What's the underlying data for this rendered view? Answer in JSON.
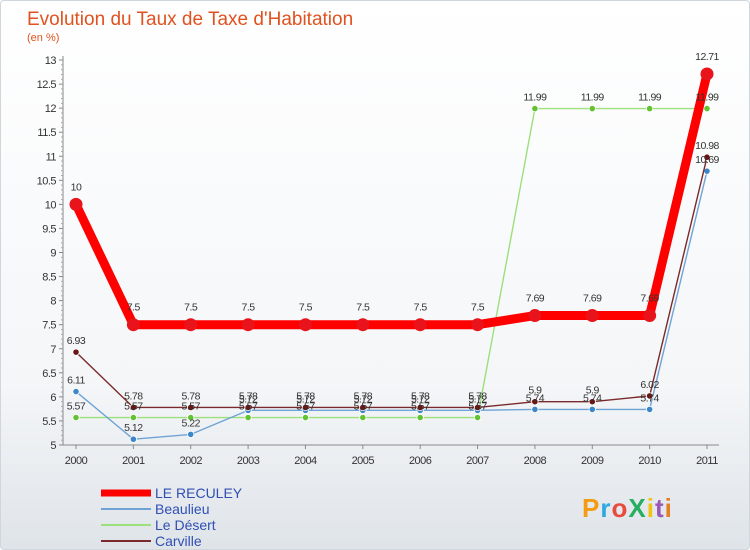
{
  "chart_data": {
    "type": "line",
    "title": "Evolution du Taux de Taxe d'Habitation",
    "subtitle": "(en %)",
    "x": [
      "2000",
      "2001",
      "2002",
      "2003",
      "2004",
      "2005",
      "2006",
      "2007",
      "2008",
      "2009",
      "2010",
      "2011"
    ],
    "yticks": [
      "5",
      "5.5",
      "6",
      "6.5",
      "7",
      "7.5",
      "8",
      "8.5",
      "9",
      "9.5",
      "10",
      "10.5",
      "11",
      "11.5",
      "12",
      "12.5",
      "13"
    ],
    "ylim": [
      5,
      13
    ],
    "grid": false,
    "legend_position": "bottom-left",
    "series": [
      {
        "name": "LE RECULEY",
        "color": "#ff0000",
        "marker": "#e8131b",
        "values": [
          10,
          7.5,
          7.5,
          7.5,
          7.5,
          7.5,
          7.5,
          7.5,
          7.69,
          7.69,
          7.69,
          12.71
        ],
        "labels": [
          "10",
          "7.5",
          "7.5",
          "7.5",
          "7.5",
          "7.5",
          "7.5",
          "7.5",
          "7.69",
          "7.69",
          "7.69",
          "12.71"
        ]
      },
      {
        "name": "Beaulieu",
        "color": "#6fa3d6",
        "marker": "#3b87c9",
        "values": [
          6.11,
          5.12,
          5.22,
          5.72,
          5.72,
          5.72,
          5.72,
          5.72,
          5.74,
          5.74,
          5.74,
          10.69
        ],
        "labels": [
          "6.11",
          "5.12",
          "5.22",
          "5.72",
          "5.72",
          "5.72",
          "5.72",
          "5.72",
          "5.74",
          "5.74",
          "5.74",
          "10.69"
        ]
      },
      {
        "name": "Le Désert",
        "color": "#9be07a",
        "marker": "#62c234",
        "values": [
          5.57,
          5.57,
          5.57,
          5.57,
          5.57,
          5.57,
          5.57,
          5.57,
          11.99,
          11.99,
          11.99,
          11.99
        ],
        "labels": [
          "5.57",
          "5.57",
          "5.57",
          "5.57",
          "5.57",
          "5.57",
          "5.57",
          "5.57",
          "11.99",
          "11.99",
          "11.99",
          "11.99"
        ]
      },
      {
        "name": "Carville",
        "color": "#7a2a2a",
        "marker": "#6b1515",
        "values": [
          6.93,
          5.78,
          5.78,
          5.78,
          5.78,
          5.78,
          5.78,
          5.78,
          5.9,
          5.9,
          6.02,
          10.98
        ],
        "labels": [
          "6.93",
          "5.78",
          "5.78",
          "5.78",
          "5.78",
          "5.78",
          "5.78",
          "5.78",
          "5.9",
          "5.9",
          "6.02",
          "10.98"
        ]
      }
    ]
  },
  "branding": {
    "logo_text": "ProXiti",
    "colors": [
      "#f39c12",
      "#2ea8e0",
      "#e74c3c",
      "#27ae60",
      "#f1c40f",
      "#9b59b6",
      "#e67e22"
    ]
  }
}
